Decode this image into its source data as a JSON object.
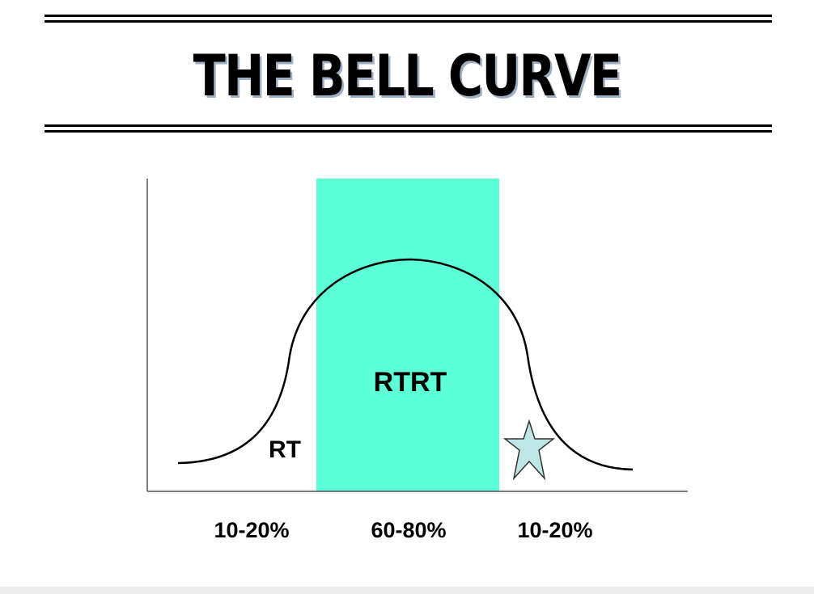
{
  "title": "THE BELL CURVE",
  "diagram": {
    "highlight_color": "#5cffd6",
    "star_color": "#bfe6e6",
    "regions": {
      "left_label": "RT",
      "middle_label": "RTRT"
    },
    "bottom_labels": {
      "left": "10-20%",
      "middle": "60-80%",
      "right": "10-20%"
    }
  }
}
